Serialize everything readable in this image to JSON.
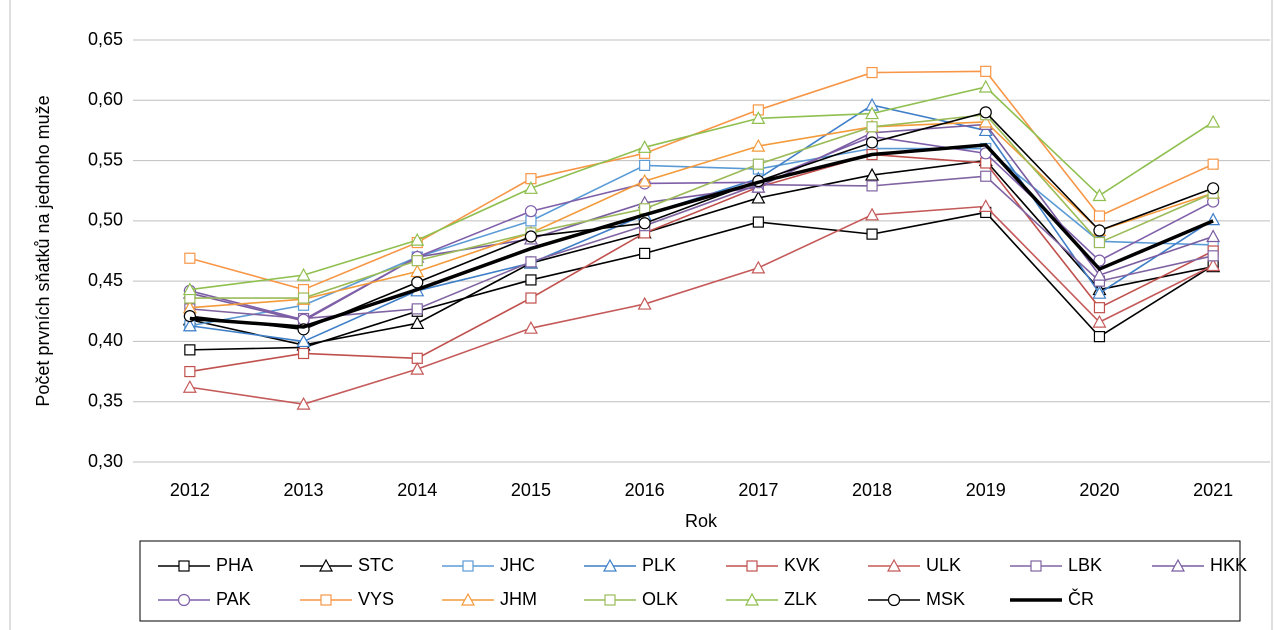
{
  "chart_data": {
    "type": "line",
    "y_label": "Počet prvních sňatků na jednoho muže",
    "x_label": "Rok",
    "categories": [
      "2012",
      "2013",
      "2014",
      "2015",
      "2016",
      "2017",
      "2018",
      "2019",
      "2020",
      "2021"
    ],
    "ylim": [
      0.3,
      0.65
    ],
    "yticks": [
      {
        "value": 0.3,
        "label": "0,30"
      },
      {
        "value": 0.35,
        "label": "0,35"
      },
      {
        "value": 0.4,
        "label": "0,40"
      },
      {
        "value": 0.45,
        "label": "0,45"
      },
      {
        "value": 0.5,
        "label": "0,50"
      },
      {
        "value": 0.55,
        "label": "0,55"
      },
      {
        "value": 0.6,
        "label": "0,60"
      },
      {
        "value": 0.65,
        "label": "0,65"
      }
    ],
    "grid": true,
    "legend": "bottom",
    "series": [
      {
        "name": "PHA",
        "color": "#000000",
        "marker": "square",
        "values": [
          0.393,
          0.395,
          0.425,
          0.451,
          0.473,
          0.499,
          0.489,
          0.507,
          0.404,
          0.463
        ]
      },
      {
        "name": "STC",
        "color": "#000000",
        "marker": "triangle",
        "values": [
          0.418,
          0.397,
          0.415,
          0.465,
          0.49,
          0.519,
          0.538,
          0.55,
          0.443,
          0.462
        ]
      },
      {
        "name": "JHC",
        "color": "#5b9bd5",
        "marker": "square",
        "values": [
          0.413,
          0.43,
          0.47,
          0.5,
          0.546,
          0.543,
          0.56,
          0.56,
          0.483,
          0.48
        ]
      },
      {
        "name": "PLK",
        "color": "#3f7fc8",
        "marker": "triangle",
        "values": [
          0.413,
          0.4,
          0.442,
          0.465,
          0.505,
          0.535,
          0.596,
          0.575,
          0.44,
          0.501
        ]
      },
      {
        "name": "KVK",
        "color": "#c0504d",
        "marker": "square",
        "values": [
          0.375,
          0.39,
          0.386,
          0.436,
          0.49,
          0.528,
          0.555,
          0.548,
          0.428,
          0.475
        ]
      },
      {
        "name": "ULK",
        "color": "#c55a5a",
        "marker": "triangle",
        "values": [
          0.362,
          0.348,
          0.377,
          0.411,
          0.431,
          0.461,
          0.505,
          0.512,
          0.416,
          0.463
        ]
      },
      {
        "name": "LBK",
        "color": "#8064a2",
        "marker": "square",
        "values": [
          0.427,
          0.419,
          0.427,
          0.466,
          0.496,
          0.53,
          0.529,
          0.537,
          0.45,
          0.471
        ]
      },
      {
        "name": "HKK",
        "color": "#7a5ca0",
        "marker": "triangle",
        "values": [
          0.44,
          0.417,
          0.47,
          0.485,
          0.515,
          0.528,
          0.573,
          0.58,
          0.455,
          0.487
        ]
      },
      {
        "name": "PAK",
        "color": "#7f5fa9",
        "marker": "circle",
        "values": [
          0.442,
          0.418,
          0.47,
          0.508,
          0.531,
          0.532,
          0.57,
          0.556,
          0.467,
          0.516
        ]
      },
      {
        "name": "VYS",
        "color": "#f79646",
        "marker": "square",
        "values": [
          0.469,
          0.443,
          0.482,
          0.535,
          0.556,
          0.592,
          0.623,
          0.624,
          0.504,
          0.547
        ]
      },
      {
        "name": "JHM",
        "color": "#f39a3a",
        "marker": "triangle",
        "values": [
          0.428,
          0.435,
          0.458,
          0.49,
          0.533,
          0.562,
          0.578,
          0.582,
          0.492,
          0.523
        ]
      },
      {
        "name": "OLK",
        "color": "#9bbb59",
        "marker": "square",
        "values": [
          0.436,
          0.436,
          0.467,
          0.49,
          0.51,
          0.547,
          0.578,
          0.588,
          0.482,
          0.523
        ]
      },
      {
        "name": "ZLK",
        "color": "#8fbf4f",
        "marker": "triangle",
        "values": [
          0.443,
          0.455,
          0.484,
          0.527,
          0.561,
          0.585,
          0.589,
          0.611,
          0.521,
          0.582
        ]
      },
      {
        "name": "MSK",
        "color": "#000000",
        "marker": "circle",
        "values": [
          0.421,
          0.41,
          0.449,
          0.487,
          0.498,
          0.533,
          0.565,
          0.59,
          0.492,
          0.527
        ]
      },
      {
        "name": "ČR",
        "color": "#000000",
        "marker": "none",
        "line_width": 3.5,
        "values": [
          0.419,
          0.412,
          0.443,
          0.477,
          0.505,
          0.532,
          0.555,
          0.563,
          0.46,
          0.5
        ]
      }
    ]
  }
}
